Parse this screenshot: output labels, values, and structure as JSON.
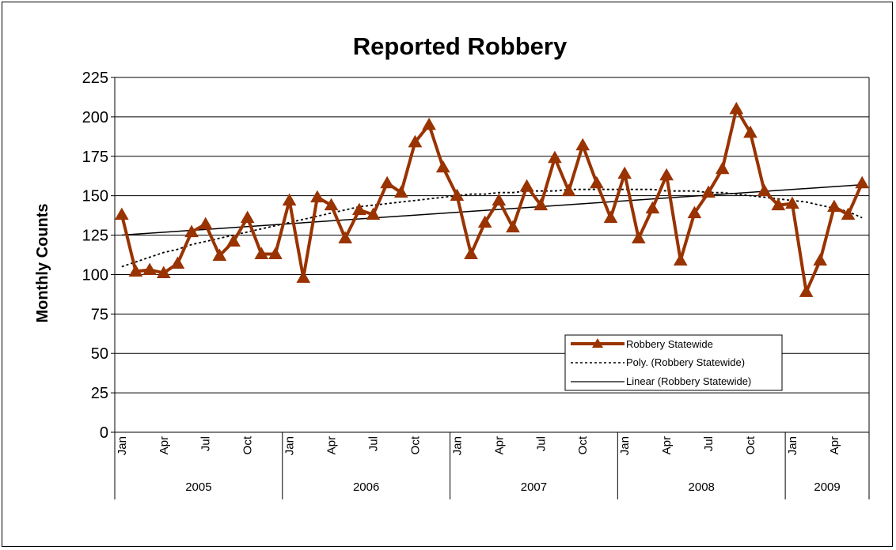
{
  "chart_data": {
    "type": "line",
    "title": "Reported Robbery",
    "ylabel": "Monthly Counts",
    "xlabel": "",
    "ylim": [
      0,
      225
    ],
    "yticks": [
      0,
      25,
      50,
      75,
      100,
      125,
      150,
      175,
      200,
      225
    ],
    "grid": true,
    "legend_position": "lower-right",
    "month_tick_labels": [
      "Jan",
      "Apr",
      "Jul",
      "Oct"
    ],
    "years": [
      {
        "label": "2005",
        "months": 12
      },
      {
        "label": "2006",
        "months": 12
      },
      {
        "label": "2007",
        "months": 12
      },
      {
        "label": "2008",
        "months": 12
      },
      {
        "label": "2009",
        "months": 6
      }
    ],
    "series": [
      {
        "name": "Robbery Statewide",
        "style": "line-triangle",
        "color": "#993300",
        "values": [
          138,
          102,
          103,
          101,
          107,
          127,
          132,
          112,
          121,
          136,
          113,
          113,
          147,
          98,
          149,
          144,
          123,
          141,
          138,
          158,
          152,
          184,
          195,
          168,
          150,
          113,
          133,
          147,
          130,
          156,
          144,
          174,
          153,
          182,
          158,
          136,
          164,
          123,
          142,
          163,
          109,
          139,
          152,
          167,
          205,
          190,
          153,
          144,
          145,
          89,
          109,
          143,
          138,
          158
        ]
      },
      {
        "name": "Poly. (Robbery Statewide)",
        "style": "dotted",
        "color": "#000000",
        "values": [
          105,
          108,
          111,
          114,
          116,
          119,
          121,
          123,
          125,
          127,
          129,
          131,
          133,
          135,
          137,
          139,
          141,
          143,
          144,
          145,
          146,
          147,
          148,
          149,
          150,
          151,
          151,
          152,
          152,
          153,
          153,
          153,
          154,
          154,
          154,
          154,
          154,
          154,
          154,
          153,
          153,
          153,
          152,
          152,
          151,
          150,
          149,
          148,
          147,
          146,
          144,
          142,
          140,
          136
        ]
      },
      {
        "name": "Linear (Robbery Statewide)",
        "style": "solid-thin",
        "color": "#000000",
        "values": [
          125,
          157
        ]
      }
    ]
  }
}
